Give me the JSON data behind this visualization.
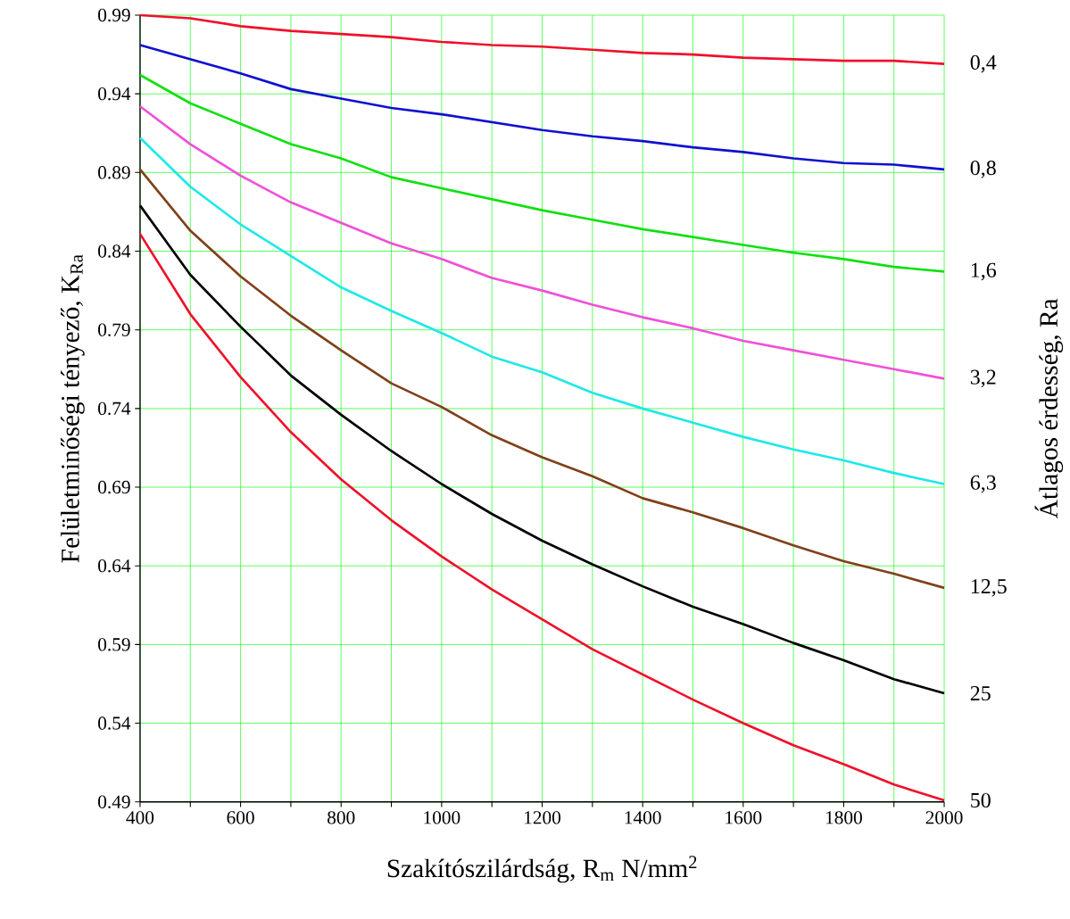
{
  "chart_data": {
    "type": "line",
    "xlabel": "Szakítószilárdság, R$_{m}$  N/mm$^{2}$",
    "ylabel": "Felületminőségi tényező, K$_{Ra}$",
    "y2label": "Átlagos érdesség, Ra",
    "x": [
      400,
      500,
      600,
      700,
      800,
      900,
      1000,
      1100,
      1200,
      1300,
      1400,
      1500,
      1600,
      1700,
      1800,
      1900,
      2000
    ],
    "xlim": [
      400,
      2000
    ],
    "xticks": [
      400,
      {
        "value": 500,
        "label": null
      },
      600,
      {
        "value": 700,
        "label": null
      },
      800,
      {
        "value": 900,
        "label": null
      },
      1000,
      {
        "value": 1100,
        "label": null
      },
      1200,
      {
        "value": 1300,
        "label": null
      },
      1400,
      {
        "value": 1500,
        "label": null
      },
      1600,
      {
        "value": 1700,
        "label": null
      },
      1800,
      {
        "value": 1900,
        "label": null
      },
      2000
    ],
    "ylim": [
      0.49,
      0.99
    ],
    "yticks": [
      {
        "value": 0.49,
        "label": "0.49"
      },
      {
        "value": 0.54,
        "label": "0.54"
      },
      {
        "value": 0.59,
        "label": "0.59"
      },
      {
        "value": 0.64,
        "label": "0.64"
      },
      {
        "value": 0.69,
        "label": "0.69"
      },
      {
        "value": 0.74,
        "label": "0.74"
      },
      {
        "value": 0.79,
        "label": "0.79"
      },
      {
        "value": 0.84,
        "label": "0.84"
      },
      {
        "value": 0.89,
        "label": "0.89"
      },
      {
        "value": 0.94,
        "label": "0.94"
      },
      {
        "value": 0.99,
        "label": "0.99"
      }
    ],
    "grid": true,
    "series": [
      {
        "name": "0,4",
        "color": "#f0102a",
        "values": [
          0.99,
          0.988,
          0.983,
          0.98,
          0.978,
          0.976,
          0.973,
          0.971,
          0.97,
          0.968,
          0.966,
          0.965,
          0.963,
          0.962,
          0.961,
          0.961,
          0.959
        ]
      },
      {
        "name": "0,8",
        "color": "#1010d0",
        "values": [
          0.971,
          0.962,
          0.953,
          0.943,
          0.937,
          0.931,
          0.927,
          0.922,
          0.917,
          0.913,
          0.91,
          0.906,
          0.903,
          0.899,
          0.896,
          0.895,
          0.892
        ]
      },
      {
        "name": "1,6",
        "color": "#10e010",
        "values": [
          0.952,
          0.934,
          0.921,
          0.908,
          0.899,
          0.887,
          0.88,
          0.873,
          0.866,
          0.86,
          0.854,
          0.849,
          0.844,
          0.839,
          0.835,
          0.83,
          0.827
        ]
      },
      {
        "name": "3,2",
        "color": "#f050d8",
        "values": [
          0.932,
          0.908,
          0.888,
          0.871,
          0.858,
          0.845,
          0.835,
          0.823,
          0.815,
          0.806,
          0.798,
          0.791,
          0.783,
          0.777,
          0.771,
          0.765,
          0.759
        ]
      },
      {
        "name": "6,3",
        "color": "#20e8e8",
        "values": [
          0.912,
          0.881,
          0.857,
          0.837,
          0.817,
          0.802,
          0.788,
          0.773,
          0.763,
          0.75,
          0.74,
          0.731,
          0.722,
          0.714,
          0.707,
          0.699,
          0.692
        ]
      },
      {
        "name": "12,5",
        "color": "#80401a",
        "values": [
          0.892,
          0.853,
          0.824,
          0.799,
          0.777,
          0.756,
          0.741,
          0.723,
          0.709,
          0.697,
          0.683,
          0.674,
          0.664,
          0.653,
          0.643,
          0.635,
          0.626
        ]
      },
      {
        "name": "25",
        "color": "#000000",
        "values": [
          0.869,
          0.825,
          0.792,
          0.761,
          0.736,
          0.713,
          0.692,
          0.673,
          0.656,
          0.641,
          0.627,
          0.614,
          0.603,
          0.591,
          0.58,
          0.568,
          0.559
        ]
      },
      {
        "name": "50",
        "color": "#f0102a",
        "values": [
          0.851,
          0.8,
          0.76,
          0.725,
          0.695,
          0.669,
          0.646,
          0.625,
          0.606,
          0.587,
          0.571,
          0.555,
          0.54,
          0.526,
          0.514,
          0.501,
          0.491
        ]
      }
    ]
  }
}
